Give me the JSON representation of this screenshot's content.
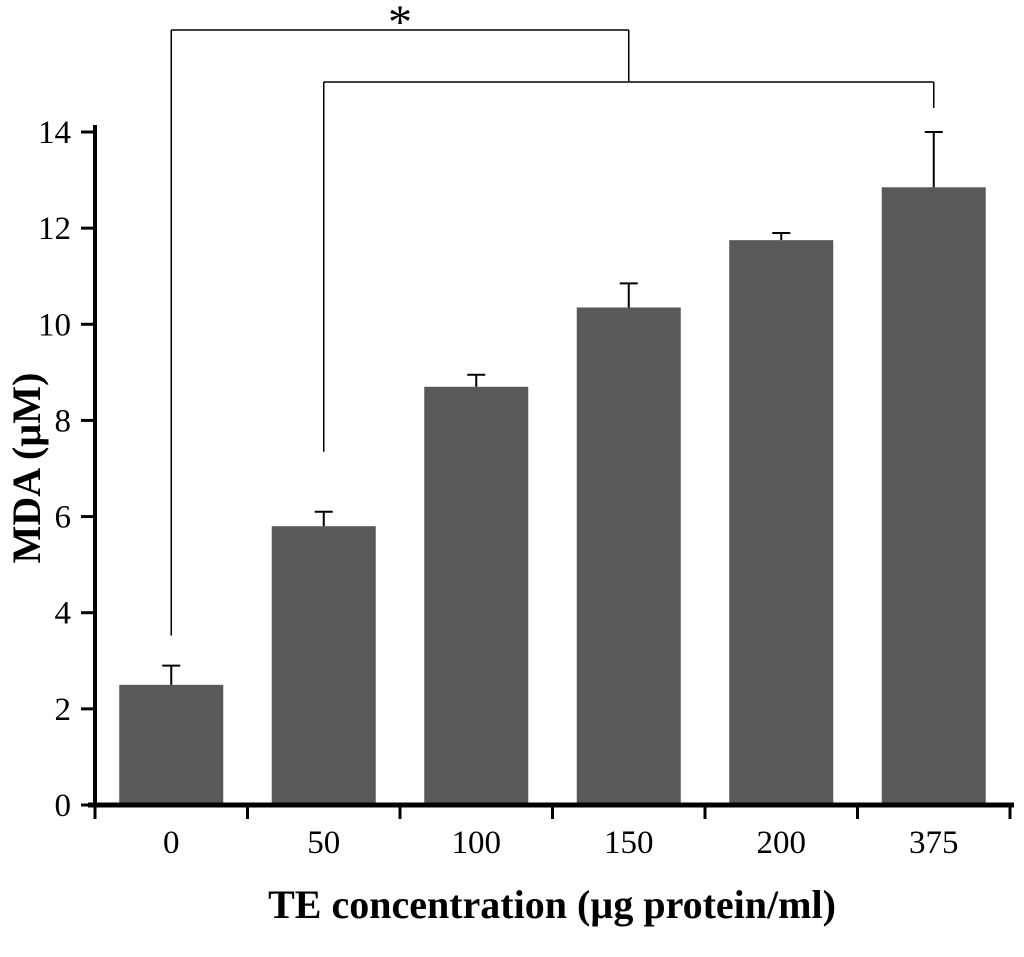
{
  "chart_data": {
    "type": "bar",
    "title": "",
    "xlabel": "TE concentration (µg protein/ml)",
    "ylabel": "MDA (µM)",
    "categories": [
      "0",
      "50",
      "100",
      "150",
      "200",
      "375"
    ],
    "values": [
      2.5,
      5.8,
      8.7,
      10.35,
      11.75,
      12.85
    ],
    "errors": [
      0.4,
      0.3,
      0.25,
      0.5,
      0.15,
      1.15
    ],
    "ylim": [
      0,
      14
    ],
    "ytick_step": 2,
    "yticks": [
      0,
      2,
      4,
      6,
      8,
      10,
      12,
      14
    ],
    "bar_color": "#595959",
    "axis_color": "#000000",
    "grid": false,
    "legend": false,
    "error_bars": "upper-only",
    "significance": [
      {
        "from": "0",
        "to": "150",
        "label": "*"
      },
      {
        "from": "50",
        "to": "375",
        "label": ""
      }
    ]
  }
}
